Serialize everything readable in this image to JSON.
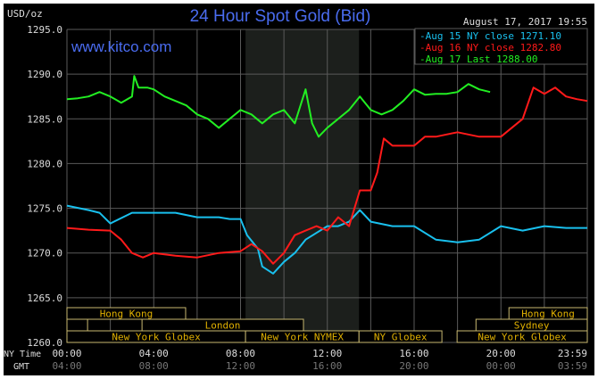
{
  "chart_data": {
    "type": "line",
    "title": "24 Hour Spot Gold (Bid)",
    "watermark": "www.kitco.com",
    "timestamp": "August 17, 2017 19:55",
    "ylabel": "USD/oz",
    "ylim": [
      1260,
      1295
    ],
    "yticks": [
      "1295.0",
      "1290.0",
      "1285.0",
      "1280.0",
      "1275.0",
      "1270.0",
      "1265.0",
      "1260.0"
    ],
    "xlim_hours": [
      0,
      23.98
    ],
    "x_row_labels": {
      "ny": "NY Time",
      "gmt": "GMT"
    },
    "xticks_ny": [
      "00:00",
      "04:00",
      "08:00",
      "12:00",
      "16:00",
      "20:00",
      "23:59"
    ],
    "xticks_gmt": [
      "04:00",
      "08:00",
      "12:00",
      "16:00",
      "20:00",
      "00:00",
      "03:59"
    ],
    "grid": true,
    "legend_position": "top-right",
    "shaded_hours": [
      8.23,
      13.46
    ],
    "series": [
      {
        "name": "Aug 15 NY close 1271.10",
        "color": "#19c0ee",
        "x": [
          0,
          1,
          1.5,
          2,
          3,
          3.5,
          4,
          5,
          6,
          7,
          7.5,
          8,
          8.3,
          8.8,
          9,
          9.5,
          10,
          10.5,
          11,
          12,
          12.5,
          13,
          13.5,
          14,
          15,
          16,
          17,
          18,
          19,
          20,
          21,
          22,
          23,
          23.98
        ],
        "y": [
          1275.3,
          1274.8,
          1274.5,
          1273.3,
          1274.5,
          1274.5,
          1274.5,
          1274.5,
          1274,
          1274,
          1273.8,
          1273.8,
          1272,
          1270.5,
          1268.5,
          1267.7,
          1269,
          1270,
          1271.5,
          1273,
          1273,
          1273.5,
          1274.8,
          1273.5,
          1273,
          1273,
          1271.5,
          1271.2,
          1271.5,
          1273,
          1272.5,
          1273,
          1272.8,
          1272.8
        ]
      },
      {
        "name": "Aug 16 NY close 1282.80",
        "color": "#ff1a1a",
        "x": [
          0,
          1,
          2,
          2.5,
          3,
          3.5,
          4,
          5,
          6,
          7,
          8,
          8.5,
          9,
          9.5,
          10,
          10.5,
          11,
          11.5,
          12,
          12.5,
          13,
          13.5,
          14,
          14.3,
          14.6,
          15,
          16,
          16.5,
          17,
          18,
          19,
          20,
          21,
          21.5,
          22,
          22.5,
          23,
          23.5,
          23.98
        ],
        "y": [
          1272.8,
          1272.6,
          1272.5,
          1271.5,
          1270,
          1269.5,
          1270,
          1269.7,
          1269.5,
          1270,
          1270.2,
          1271,
          1270.2,
          1268.8,
          1270,
          1272,
          1272.5,
          1273,
          1272.5,
          1274,
          1273,
          1277,
          1277,
          1279,
          1282.8,
          1282,
          1282,
          1283,
          1283,
          1283.5,
          1283,
          1283,
          1285,
          1288.5,
          1287.8,
          1288.5,
          1287.5,
          1287.2,
          1287
        ]
      },
      {
        "name": "Aug 17 Last 1288.00",
        "color": "#22ee22",
        "x": [
          0,
          0.5,
          1,
          1.5,
          2,
          2.5,
          3,
          3.1,
          3.3,
          3.7,
          4,
          4.5,
          5,
          5.5,
          6,
          6.5,
          7,
          7.5,
          8,
          8.5,
          9,
          9.5,
          10,
          10.5,
          11,
          11.3,
          11.6,
          12,
          12.5,
          13,
          13.5,
          14,
          14.5,
          15,
          15.5,
          16,
          16.5,
          17,
          17.5,
          18,
          18.5,
          19,
          19.5
        ],
        "y": [
          1287.2,
          1287.3,
          1287.5,
          1288,
          1287.5,
          1286.8,
          1287.5,
          1289.8,
          1288.5,
          1288.5,
          1288.3,
          1287.5,
          1287,
          1286.5,
          1285.5,
          1285,
          1284,
          1285,
          1286,
          1285.5,
          1284.5,
          1285.5,
          1286,
          1284.5,
          1288.3,
          1284.5,
          1283,
          1284,
          1285,
          1286,
          1287.5,
          1286,
          1285.5,
          1286,
          1287,
          1288.3,
          1287.7,
          1287.8,
          1287.8,
          1288,
          1288.9,
          1288.3,
          1288
        ]
      }
    ],
    "sessions": [
      {
        "label": "Hong Kong",
        "row": 0,
        "start": 0,
        "end": 5.47
      },
      {
        "label": "Hong Kong",
        "row": 0,
        "start": 20.37,
        "end": 23.98
      },
      {
        "label": "",
        "row": 1,
        "start": 0,
        "end": 0.95
      },
      {
        "label": "London",
        "row": 1,
        "start": 3.46,
        "end": 10.9
      },
      {
        "label": "Sydney",
        "row": 1,
        "start": 18.85,
        "end": 23.98
      },
      {
        "label": "New York Globex",
        "row": 2,
        "start": 0,
        "end": 8.23
      },
      {
        "label": "New York NYMEX",
        "row": 2,
        "start": 8.23,
        "end": 13.46
      },
      {
        "label": "NY Globex",
        "row": 2,
        "start": 13.46,
        "end": 17.28
      },
      {
        "label": "New York Globex",
        "row": 2,
        "start": 17.98,
        "end": 23.98
      }
    ],
    "colors": {
      "title": "#4a6cf0",
      "session": "#e0b000",
      "grid": "#5a5a5a",
      "background": "#000000"
    }
  }
}
